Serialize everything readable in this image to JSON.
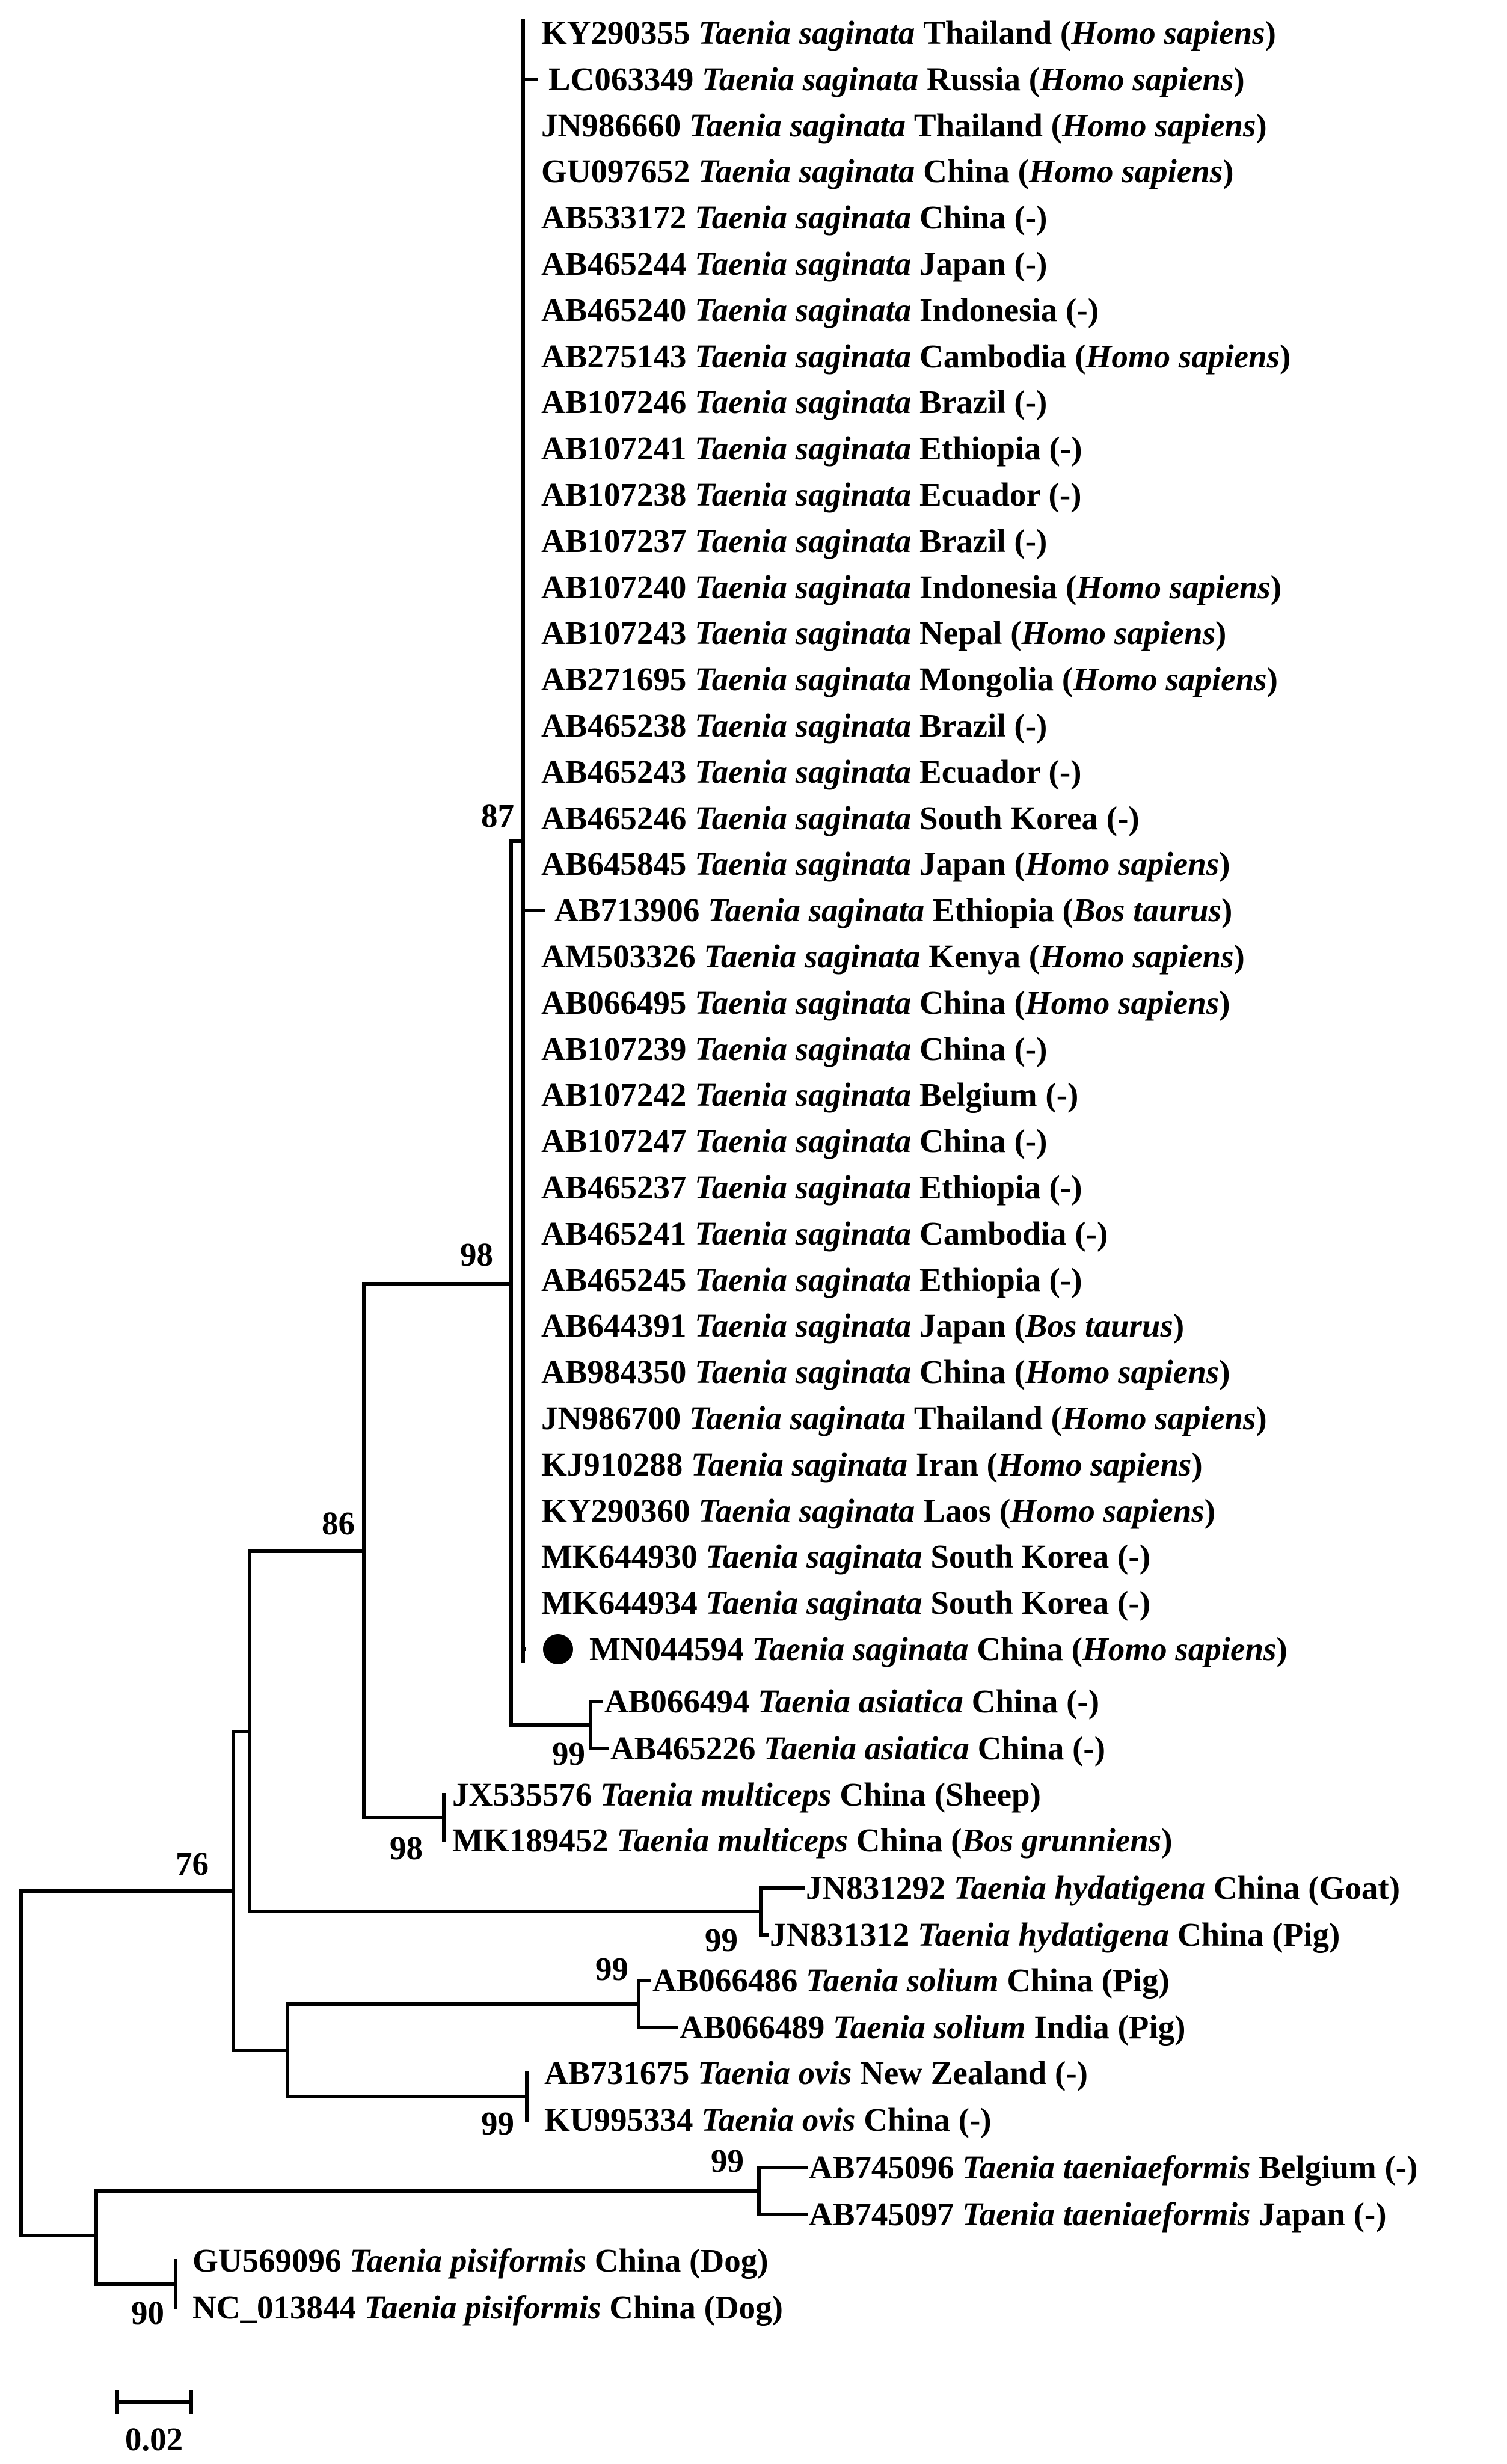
{
  "figure": {
    "scale_label": "0.02",
    "marker_taxon": "MN044594"
  },
  "taxa": [
    {
      "acc": "KY290355",
      "species": "Taenia saginata",
      "country": "Thailand",
      "host": "Homo sapiens",
      "host_italic": true
    },
    {
      "acc": "LC063349",
      "species": "Taenia saginata",
      "country": "Russia",
      "host": "Homo sapiens",
      "host_italic": true
    },
    {
      "acc": "JN986660",
      "species": "Taenia saginata",
      "country": "Thailand",
      "host": "Homo sapiens",
      "host_italic": true
    },
    {
      "acc": "GU097652",
      "species": "Taenia saginata",
      "country": "China",
      "host": "Homo sapiens",
      "host_italic": true
    },
    {
      "acc": "AB533172",
      "species": "Taenia saginata",
      "country": "China",
      "host": "-",
      "host_italic": false
    },
    {
      "acc": "AB465244",
      "species": "Taenia saginata",
      "country": "Japan",
      "host": "-",
      "host_italic": false
    },
    {
      "acc": "AB465240",
      "species": "Taenia saginata",
      "country": "Indonesia",
      "host": "-",
      "host_italic": false
    },
    {
      "acc": "AB275143",
      "species": "Taenia saginata",
      "country": "Cambodia",
      "host": "Homo sapiens",
      "host_italic": true
    },
    {
      "acc": "AB107246",
      "species": "Taenia saginata",
      "country": "Brazil",
      "host": "-",
      "host_italic": false
    },
    {
      "acc": "AB107241",
      "species": "Taenia saginata",
      "country": "Ethiopia",
      "host": "-",
      "host_italic": false
    },
    {
      "acc": "AB107238",
      "species": "Taenia saginata",
      "country": "Ecuador",
      "host": "-",
      "host_italic": false
    },
    {
      "acc": "AB107237",
      "species": "Taenia saginata",
      "country": "Brazil",
      "host": "-",
      "host_italic": false
    },
    {
      "acc": "AB107240",
      "species": "Taenia saginata",
      "country": "Indonesia",
      "host": "Homo sapiens",
      "host_italic": true
    },
    {
      "acc": "AB107243",
      "species": "Taenia saginata",
      "country": "Nepal",
      "host": "Homo sapiens",
      "host_italic": true
    },
    {
      "acc": "AB271695",
      "species": "Taenia saginata",
      "country": "Mongolia",
      "host": "Homo sapiens",
      "host_italic": true
    },
    {
      "acc": "AB465238",
      "species": "Taenia saginata",
      "country": "Brazil",
      "host": "-",
      "host_italic": false
    },
    {
      "acc": "AB465243",
      "species": "Taenia saginata",
      "country": "Ecuador",
      "host": "-",
      "host_italic": false
    },
    {
      "acc": "AB465246",
      "species": "Taenia saginata",
      "country": "South Korea",
      "host": "-",
      "host_italic": false
    },
    {
      "acc": "AB645845",
      "species": "Taenia saginata",
      "country": "Japan",
      "host": "Homo sapiens",
      "host_italic": true
    },
    {
      "acc": "AB713906",
      "species": "Taenia saginata",
      "country": "Ethiopia",
      "host": "Bos taurus",
      "host_italic": true
    },
    {
      "acc": "AM503326",
      "species": "Taenia saginata",
      "country": "Kenya",
      "host": "Homo sapiens",
      "host_italic": true
    },
    {
      "acc": "AB066495",
      "species": "Taenia saginata",
      "country": "China",
      "host": "Homo sapiens",
      "host_italic": true
    },
    {
      "acc": "AB107239",
      "species": "Taenia saginata",
      "country": "China",
      "host": "-",
      "host_italic": false
    },
    {
      "acc": "AB107242",
      "species": "Taenia saginata",
      "country": "Belgium",
      "host": "-",
      "host_italic": false
    },
    {
      "acc": "AB107247",
      "species": "Taenia saginata",
      "country": "China",
      "host": "-",
      "host_italic": false
    },
    {
      "acc": "AB465237",
      "species": "Taenia saginata",
      "country": "Ethiopia",
      "host": "-",
      "host_italic": false
    },
    {
      "acc": "AB465241",
      "species": "Taenia saginata",
      "country": "Cambodia",
      "host": "-",
      "host_italic": false
    },
    {
      "acc": "AB465245",
      "species": "Taenia saginata",
      "country": "Ethiopia",
      "host": "-",
      "host_italic": false
    },
    {
      "acc": "AB644391",
      "species": "Taenia saginata",
      "country": "Japan",
      "host": "Bos taurus",
      "host_italic": true
    },
    {
      "acc": "AB984350",
      "species": "Taenia saginata",
      "country": "China",
      "host": "Homo sapiens",
      "host_italic": true
    },
    {
      "acc": "JN986700",
      "species": "Taenia saginata",
      "country": "Thailand",
      "host": "Homo sapiens",
      "host_italic": true
    },
    {
      "acc": "KJ910288",
      "species": "Taenia saginata",
      "country": "Iran",
      "host": "Homo sapiens",
      "host_italic": true
    },
    {
      "acc": "KY290360",
      "species": "Taenia saginata",
      "country": "Laos",
      "host": "Homo sapiens",
      "host_italic": true
    },
    {
      "acc": "MK644930",
      "species": "Taenia saginata",
      "country": "South Korea",
      "host": "-",
      "host_italic": false
    },
    {
      "acc": "MK644934",
      "species": "Taenia saginata",
      "country": "South Korea",
      "host": "-",
      "host_italic": false
    },
    {
      "acc": "MN044594",
      "species": "Taenia saginata",
      "country": "China",
      "host": "Homo sapiens",
      "host_italic": true
    },
    {
      "acc": "AB066494",
      "species": "Taenia asiatica",
      "country": "China",
      "host": "-",
      "host_italic": false
    },
    {
      "acc": "AB465226",
      "species": "Taenia asiatica",
      "country": "China",
      "host": "-",
      "host_italic": false
    },
    {
      "acc": "JX535576",
      "species": "Taenia multiceps",
      "country": "China",
      "host": "Sheep",
      "host_italic": false
    },
    {
      "acc": "MK189452",
      "species": "Taenia multiceps",
      "country": "China",
      "host": "Bos grunniens",
      "host_italic": true
    },
    {
      "acc": "JN831292",
      "species": "Taenia hydatigena",
      "country": "China",
      "host": "Goat",
      "host_italic": false
    },
    {
      "acc": "JN831312",
      "species": "Taenia hydatigena",
      "country": "China",
      "host": "Pig",
      "host_italic": false
    },
    {
      "acc": "AB066486",
      "species": "Taenia solium",
      "country": "China",
      "host": "Pig",
      "host_italic": false
    },
    {
      "acc": "AB066489",
      "species": "Taenia solium",
      "country": "India",
      "host": "Pig",
      "host_italic": false
    },
    {
      "acc": "AB731675",
      "species": "Taenia ovis",
      "country": "New Zealand",
      "host": "-",
      "host_italic": false
    },
    {
      "acc": "KU995334",
      "species": "Taenia ovis",
      "country": "China",
      "host": "-",
      "host_italic": false
    },
    {
      "acc": "AB745096",
      "species": "Taenia taeniaeformis",
      "country": "Belgium",
      "host": "-",
      "host_italic": false
    },
    {
      "acc": "AB745097",
      "species": "Taenia taeniaeformis",
      "country": "Japan",
      "host": "-",
      "host_italic": false
    },
    {
      "acc": "GU569096",
      "species": "Taenia pisiformis",
      "country": "China",
      "host": "Dog",
      "host_italic": false
    },
    {
      "acc": "NC_013844",
      "species": "Taenia pisiformis",
      "country": "China",
      "host": "Dog",
      "host_italic": false
    }
  ],
  "bootstrap": [
    {
      "node": "saginata-clade",
      "value": "87"
    },
    {
      "node": "saginata-asiatica",
      "value": "98"
    },
    {
      "node": "asiatica-pair",
      "value": "99"
    },
    {
      "node": "beef-tapeworm-group",
      "value": "86"
    },
    {
      "node": "multiceps-pair",
      "value": "98"
    },
    {
      "node": "hydatigena-pair",
      "value": "99"
    },
    {
      "node": "ingroup",
      "value": "76"
    },
    {
      "node": "solium-pair",
      "value": "99"
    },
    {
      "node": "ovis-pair",
      "value": "99"
    },
    {
      "node": "taeniaeformis-pair",
      "value": "99"
    },
    {
      "node": "pisiformis-pair",
      "value": "90"
    }
  ]
}
